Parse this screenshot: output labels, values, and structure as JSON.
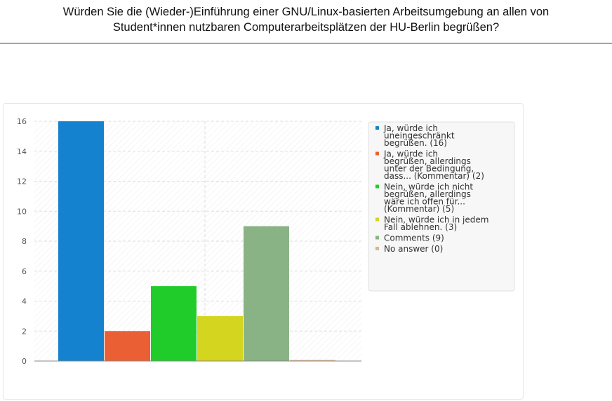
{
  "question": {
    "line1": "Würden Sie die (Wieder-)Einführung einer GNU/Linux-basierten Arbeitsumgebung an allen von",
    "line2": "Student*innen nutzbaren Computerarbeitsplätzen der HU-Berlin begrüßen?"
  },
  "chart_data": {
    "type": "bar",
    "title": "",
    "xlabel": "",
    "ylabel": "",
    "ylim": [
      0,
      16
    ],
    "yticks": [
      0,
      2,
      4,
      6,
      8,
      10,
      12,
      14,
      16
    ],
    "grid": true,
    "legend_position": "right",
    "categories": [
      "Ja, würde ich uneingeschränkt begrüßen. (16)",
      "Ja, würde ich begrüßen, allerdings unter der Bedingung, dass... (Kommentar) (2)",
      "Nein, würde ich nicht begrüßen, allerdings wäre ich offen für... (Kommentar) (5)",
      "Nein, würde ich in jedem Fall ablehnen. (3)",
      "Comments (9)",
      "No answer (0)"
    ],
    "values": [
      16,
      2,
      5,
      3,
      9,
      0
    ],
    "colors": [
      "#1582cf",
      "#eb5f34",
      "#20cc2a",
      "#d3d51f",
      "#89b385",
      "#dcb48e"
    ],
    "legend": [
      [
        "Ja, würde ich",
        "uneingeschränkt",
        "begrüßen. (16)"
      ],
      [
        "Ja, würde ich",
        "begrüßen, allerdings",
        "unter der Bedingung,",
        "dass... (Kommentar) (2)"
      ],
      [
        "Nein, würde ich nicht",
        "begrüßen, allerdings",
        "wäre ich offen für...",
        "(Kommentar) (5)"
      ],
      [
        "Nein, würde ich in jedem",
        "Fall ablehnen. (3)"
      ],
      [
        "Comments (9)"
      ],
      [
        "No answer (0)"
      ]
    ]
  }
}
